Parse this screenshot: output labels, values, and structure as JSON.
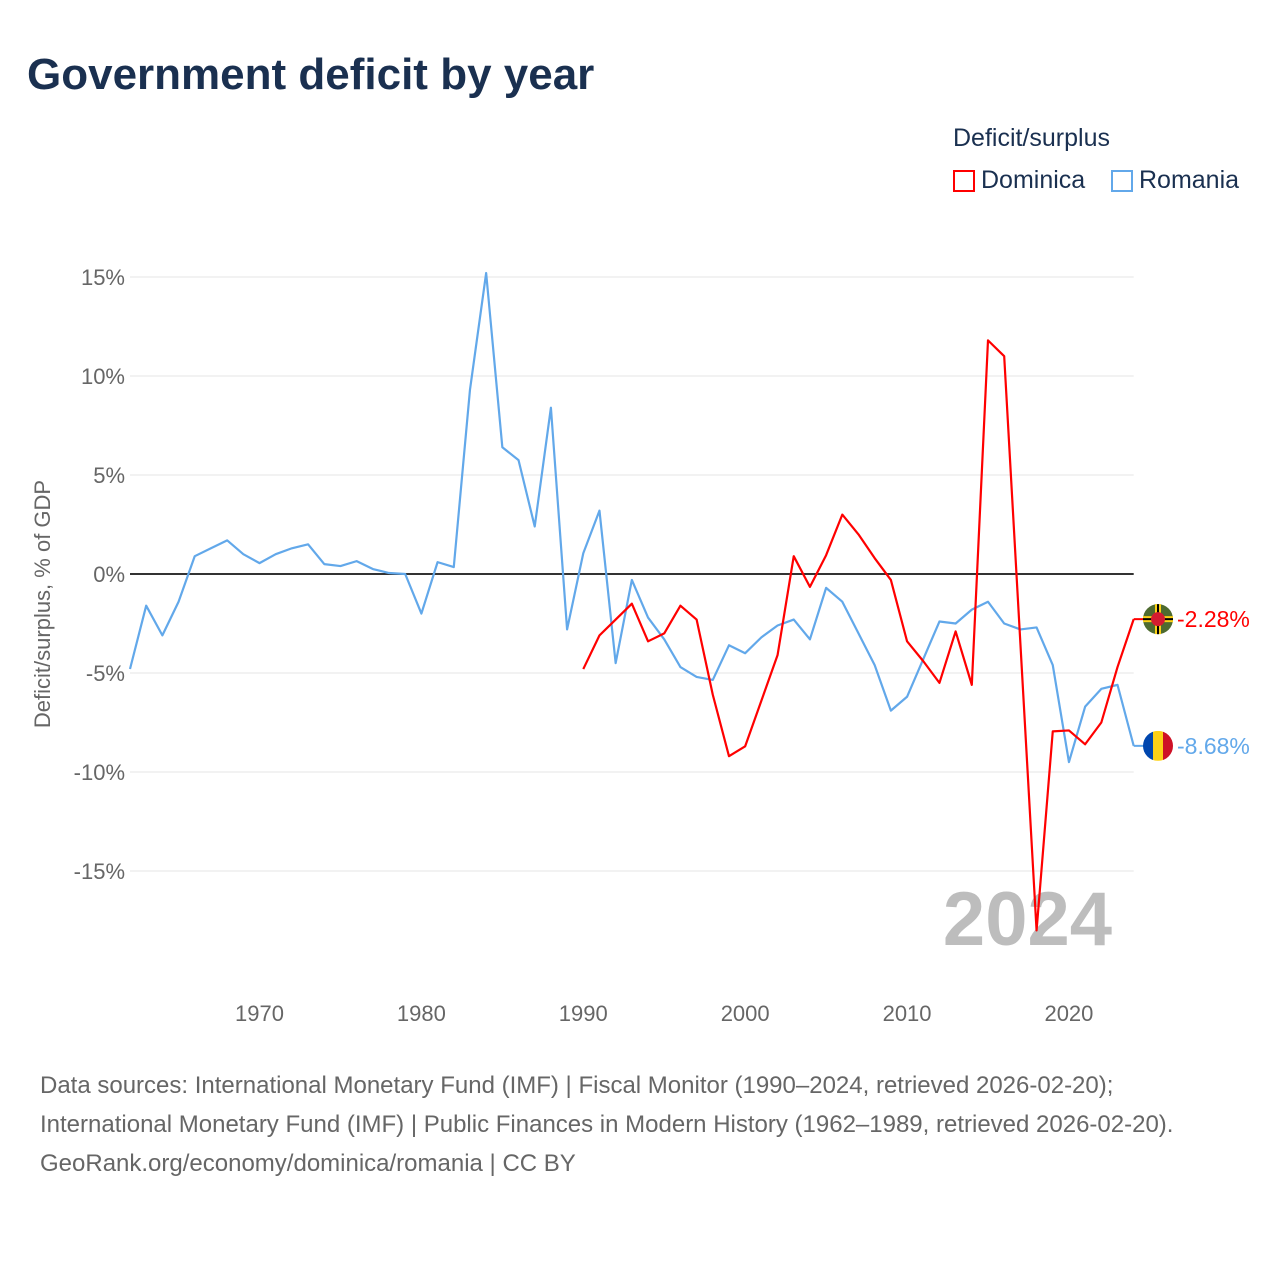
{
  "title": "Government deficit by year",
  "legend": {
    "title": "Deficit/surplus",
    "items": [
      {
        "label": "Dominica",
        "color": "#ff0000"
      },
      {
        "label": "Romania",
        "color": "#62a8ea"
      }
    ]
  },
  "footer": {
    "sources": "Data sources: International Monetary Fund (IMF) | Fiscal Monitor (1990–2024, retrieved 2026-02-20); International Monetary Fund (IMF) | Public Finances in Modern History (1962–1989, retrieved 2026-02-20).",
    "credit": "GeoRank.org/economy/dominica/romania | CC BY"
  },
  "chart_data": {
    "type": "line",
    "title": "Government deficit by year",
    "ylabel": "Deficit/surplus, % of GDP",
    "xlabel": "",
    "xlim": [
      1962,
      2024
    ],
    "ylim": [
      -19,
      16
    ],
    "xticks": [
      1970,
      1980,
      1990,
      2000,
      2010,
      2020
    ],
    "yticks": [
      15,
      10,
      5,
      0,
      -5,
      -10,
      -15
    ],
    "ytick_labels": [
      "15%",
      "10%",
      "5%",
      "0%",
      "-5%",
      "-10%",
      "-15%"
    ],
    "year_watermark": "2024",
    "series": [
      {
        "name": "Romania",
        "color": "#62a8ea",
        "end_label": "-8.68%",
        "x_start": 1962,
        "values": [
          -4.8,
          -1.6,
          -3.1,
          -1.4,
          0.9,
          1.3,
          1.7,
          1.0,
          0.55,
          1.0,
          1.3,
          1.5,
          0.5,
          0.4,
          0.65,
          0.25,
          0.05,
          0,
          -2.0,
          0.6,
          0.35,
          9.3,
          15.2,
          6.4,
          5.75,
          2.4,
          8.4,
          -2.8,
          1.05,
          3.2,
          -4.5,
          -0.3,
          -2.2,
          -3.3,
          -4.7,
          -5.2,
          -5.35,
          -3.6,
          -4.0,
          -3.2,
          -2.6,
          -2.3,
          -3.3,
          -0.7,
          -1.4,
          -3.0,
          -4.6,
          -6.9,
          -6.2,
          -4.3,
          -2.4,
          -2.5,
          -1.8,
          -1.4,
          -2.5,
          -2.8,
          -2.7,
          -4.6,
          -9.5,
          -6.7,
          -5.8,
          -5.6,
          -8.68
        ]
      },
      {
        "name": "Dominica",
        "color": "#ff0000",
        "end_label": "-2.28%",
        "x_start": 1990,
        "values": [
          -4.8,
          -3.1,
          -2.3,
          -1.5,
          -3.4,
          -3.0,
          -1.6,
          -2.3,
          -6.1,
          -9.2,
          -8.7,
          -6.4,
          -4.1,
          0.9,
          -0.65,
          0.95,
          3.0,
          2.0,
          0.8,
          -0.3,
          -3.4,
          -4.4,
          -5.5,
          -2.9,
          -5.6,
          11.8,
          11.0,
          -3.5,
          -18.0,
          -7.95,
          -7.9,
          -8.6,
          -7.5,
          -4.7,
          -2.28
        ]
      }
    ]
  }
}
